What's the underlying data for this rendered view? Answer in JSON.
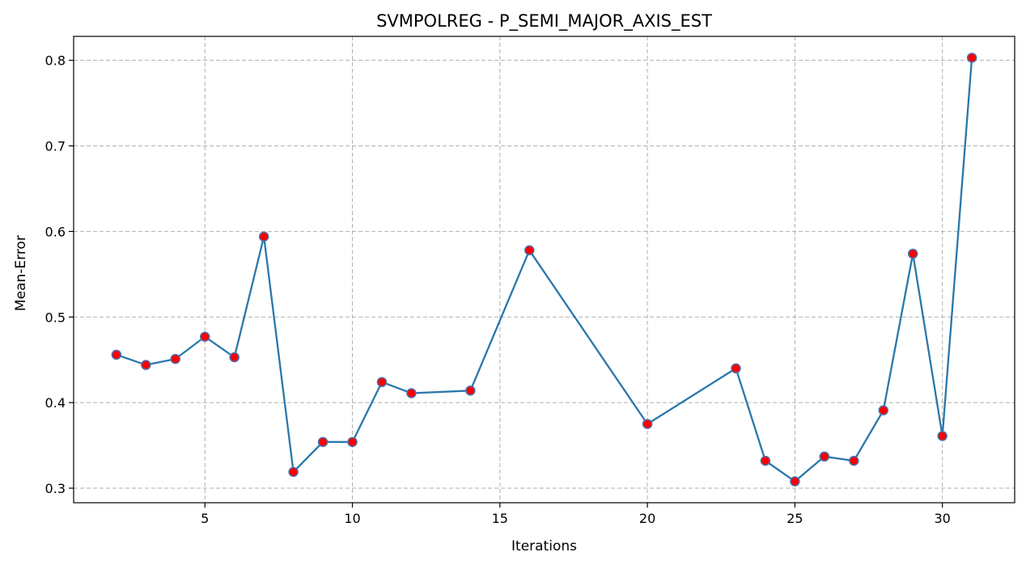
{
  "chart_data": {
    "type": "line",
    "title": "SVMPOLREG - P_SEMI_MAJOR_AXIS_EST",
    "xlabel": "Iterations",
    "ylabel": "Mean-Error",
    "xlim": [
      0.55,
      32.45
    ],
    "ylim": [
      0.283,
      0.828
    ],
    "xticks": [
      5,
      10,
      15,
      20,
      25,
      30
    ],
    "yticks": [
      0.3,
      0.4,
      0.5,
      0.6,
      0.7,
      0.8
    ],
    "grid": true,
    "series": [
      {
        "x": [
          2,
          3,
          4,
          5,
          6,
          7,
          8,
          9,
          10,
          11,
          12,
          14,
          16,
          20,
          23,
          24,
          25,
          26,
          27,
          28,
          29,
          30,
          31
        ],
        "y": [
          0.456,
          0.444,
          0.451,
          0.477,
          0.453,
          0.594,
          0.319,
          0.354,
          0.354,
          0.424,
          0.411,
          0.414,
          0.578,
          0.375,
          0.44,
          0.332,
          0.308,
          0.337,
          0.332,
          0.391,
          0.574,
          0.361,
          0.803
        ],
        "line_color": "#2a77ab",
        "marker_color": "#ff0000",
        "marker_edge_color": "#4a72b0"
      }
    ]
  }
}
